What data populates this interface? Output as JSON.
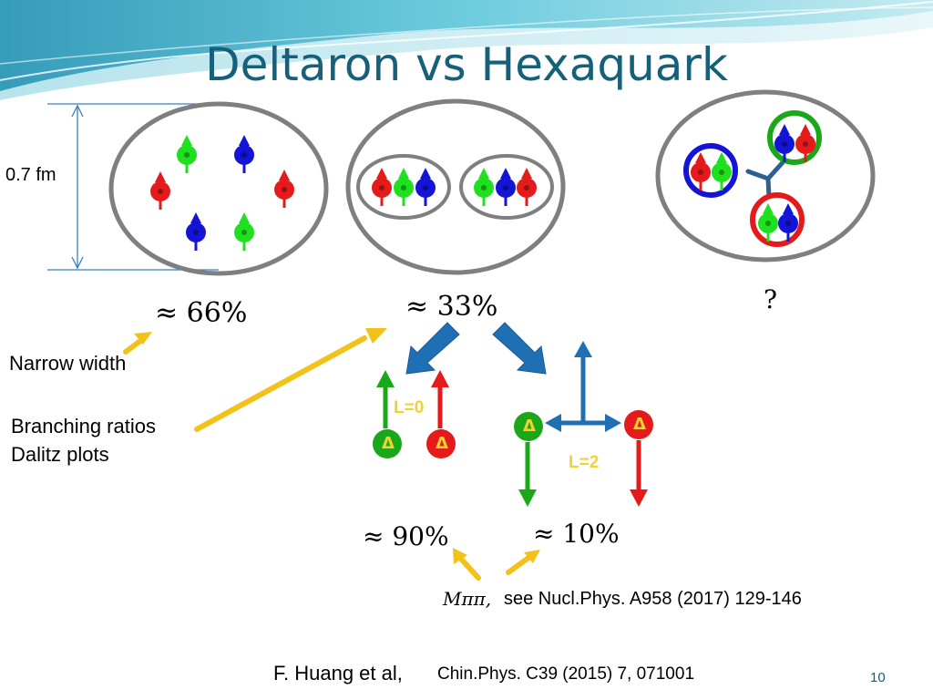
{
  "title": "Deltaron vs Hexaquark",
  "scale_label": "0.7 fm",
  "percent_deltaron": "≈ 66%",
  "percent_pair": "≈ 33%",
  "percent_hexaquark": "?",
  "note_narrow_width": "Narrow width",
  "note_branching_line1": "Branching ratios",
  "note_branching_line2": "Dalitz plots",
  "label_l0": "L=0",
  "label_l2": "L=2",
  "delta_symbol": "Δ",
  "percent_l0": "≈ 90%",
  "percent_l2": "≈ 10%",
  "mpipi_label": "Mππ,",
  "reference_1": "see Nucl.Phys. A958 (2017) 129-146",
  "citation_author": "F. Huang et al,",
  "citation_journal": "Chin.Phys. C39 (2015) 7, 071001",
  "page_number": "10",
  "colors": {
    "title": "#17607a",
    "red_quark": "#e51a1a",
    "green_quark": "#1fe01f",
    "blue_quark": "#1414d6",
    "cluster_gray": "#7f7f7f",
    "arrow_blue": "#1f6fb5",
    "arrow_yellow": "#f2c21a",
    "spin_blue": "#1f6fb5",
    "spin_green": "#1aa81a",
    "spin_red": "#e51a1a"
  }
}
